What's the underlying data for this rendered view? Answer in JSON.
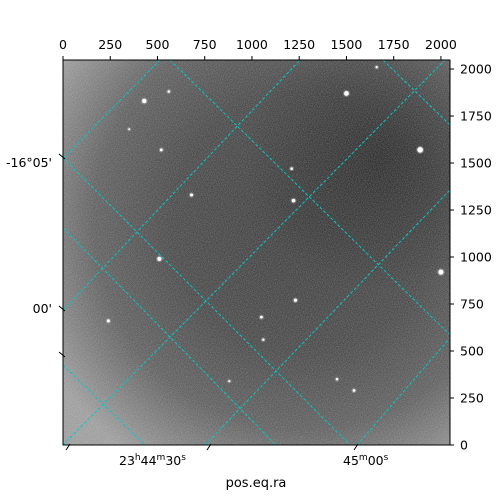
{
  "chart_data": {
    "type": "image",
    "xlabel": "pos.eq.ra",
    "ylabel": "",
    "pixel_axes": {
      "xlim": [
        0,
        2048
      ],
      "ylim": [
        0,
        2048
      ],
      "top_ticks": [
        0,
        250,
        500,
        750,
        1000,
        1250,
        1500,
        1750,
        2000
      ],
      "right_ticks": [
        0,
        250,
        500,
        750,
        1000,
        1250,
        1500,
        1750,
        2000
      ]
    },
    "world_axes": {
      "ra_tick_labels": [
        {
          "h": "23",
          "m": "44",
          "s": "30"
        },
        {
          "m": "45",
          "s": "00"
        }
      ],
      "dec_tick_labels": [
        "-16°05'",
        "00'"
      ]
    },
    "colors": {
      "grid": "#00c8c8",
      "image_dark": "#2a2a2a",
      "image_light": "#bdbdbd"
    },
    "stars": [
      {
        "x": 430,
        "y": 1830,
        "r": 2.2
      },
      {
        "x": 560,
        "y": 1880,
        "r": 1.2
      },
      {
        "x": 1500,
        "y": 1870,
        "r": 2.4
      },
      {
        "x": 1890,
        "y": 1570,
        "r": 2.8
      },
      {
        "x": 520,
        "y": 1570,
        "r": 1.4
      },
      {
        "x": 680,
        "y": 1330,
        "r": 1.5
      },
      {
        "x": 1220,
        "y": 1300,
        "r": 1.8
      },
      {
        "x": 1210,
        "y": 1470,
        "r": 1.3
      },
      {
        "x": 510,
        "y": 990,
        "r": 2.1
      },
      {
        "x": 2000,
        "y": 920,
        "r": 2.6
      },
      {
        "x": 1230,
        "y": 770,
        "r": 1.6
      },
      {
        "x": 1050,
        "y": 680,
        "r": 1.4
      },
      {
        "x": 240,
        "y": 660,
        "r": 1.5
      },
      {
        "x": 1060,
        "y": 560,
        "r": 1.2
      },
      {
        "x": 1540,
        "y": 290,
        "r": 1.3
      },
      {
        "x": 1450,
        "y": 350,
        "r": 1.2
      },
      {
        "x": 880,
        "y": 340,
        "r": 1.0
      },
      {
        "x": 350,
        "y": 1680,
        "r": 0.9
      },
      {
        "x": 1660,
        "y": 2010,
        "r": 1.1
      }
    ]
  }
}
